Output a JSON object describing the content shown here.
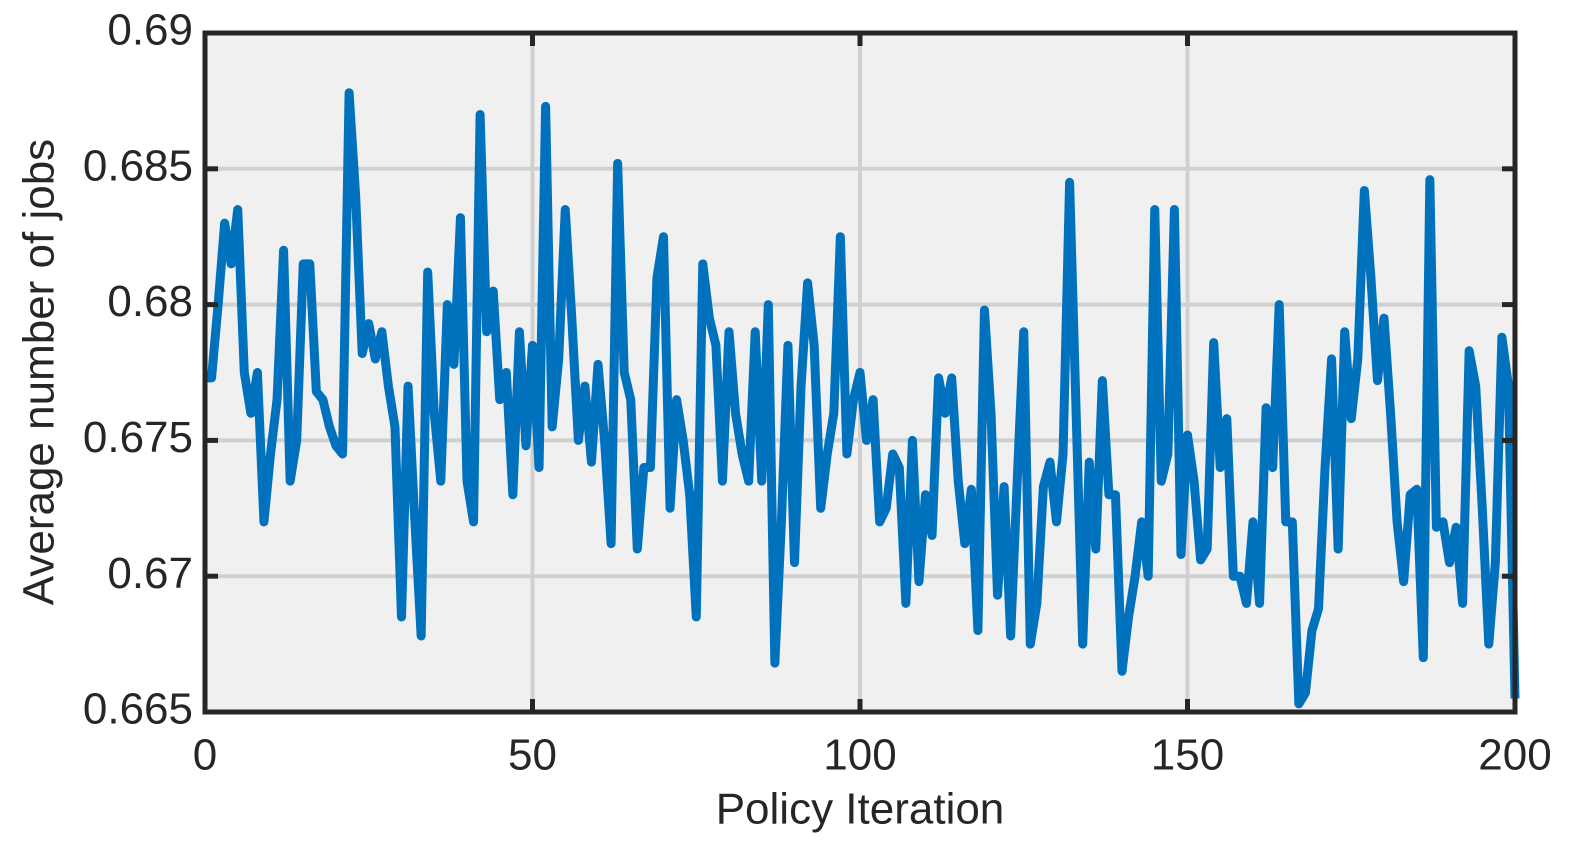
{
  "chart_data": {
    "type": "line",
    "xlabel": "Policy Iteration",
    "ylabel": "Average number of jobs",
    "x": [
      0,
      1,
      2,
      3,
      4,
      5,
      6,
      7,
      8,
      9,
      10,
      11,
      12,
      13,
      14,
      15,
      16,
      17,
      18,
      19,
      20,
      21,
      22,
      23,
      24,
      25,
      26,
      27,
      28,
      29,
      30,
      31,
      32,
      33,
      34,
      35,
      36,
      37,
      38,
      39,
      40,
      41,
      42,
      43,
      44,
      45,
      46,
      47,
      48,
      49,
      50,
      51,
      52,
      53,
      54,
      55,
      56,
      57,
      58,
      59,
      60,
      61,
      62,
      63,
      64,
      65,
      66,
      67,
      68,
      69,
      70,
      71,
      72,
      73,
      74,
      75,
      76,
      77,
      78,
      79,
      80,
      81,
      82,
      83,
      84,
      85,
      86,
      87,
      88,
      89,
      90,
      91,
      92,
      93,
      94,
      95,
      96,
      97,
      98,
      99,
      100,
      101,
      102,
      103,
      104,
      105,
      106,
      107,
      108,
      109,
      110,
      111,
      112,
      113,
      114,
      115,
      116,
      117,
      118,
      119,
      120,
      121,
      122,
      123,
      124,
      125,
      126,
      127,
      128,
      129,
      130,
      131,
      132,
      133,
      134,
      135,
      136,
      137,
      138,
      139,
      140,
      141,
      142,
      143,
      144,
      145,
      146,
      147,
      148,
      149,
      150,
      151,
      152,
      153,
      154,
      155,
      156,
      157,
      158,
      159,
      160,
      161,
      162,
      163,
      164,
      165,
      166,
      167,
      168,
      169,
      170,
      171,
      172,
      173,
      174,
      175,
      176,
      177,
      178,
      179,
      180,
      181,
      182,
      183,
      184,
      185,
      186,
      187,
      188,
      189,
      190,
      191,
      192,
      193,
      194,
      195,
      196,
      197,
      198,
      199,
      200
    ],
    "series": [
      {
        "color": "#0072bd",
        "values": [
          0.6773,
          0.6773,
          0.68,
          0.683,
          0.6815,
          0.6835,
          0.6775,
          0.676,
          0.6775,
          0.672,
          0.6745,
          0.6765,
          0.682,
          0.6735,
          0.675,
          0.6815,
          0.6815,
          0.6768,
          0.6765,
          0.6755,
          0.6748,
          0.6745,
          0.6878,
          0.684,
          0.6782,
          0.6793,
          0.678,
          0.679,
          0.677,
          0.6755,
          0.6685,
          0.677,
          0.6722,
          0.6678,
          0.6812,
          0.676,
          0.6735,
          0.68,
          0.6778,
          0.6832,
          0.6735,
          0.672,
          0.687,
          0.679,
          0.6805,
          0.6765,
          0.6775,
          0.673,
          0.679,
          0.6748,
          0.6785,
          0.674,
          0.6873,
          0.6755,
          0.678,
          0.6835,
          0.6795,
          0.675,
          0.677,
          0.6742,
          0.6778,
          0.675,
          0.6712,
          0.6852,
          0.6775,
          0.6765,
          0.671,
          0.674,
          0.674,
          0.681,
          0.6825,
          0.6725,
          0.6765,
          0.675,
          0.673,
          0.6685,
          0.6815,
          0.6795,
          0.6785,
          0.6735,
          0.679,
          0.676,
          0.6745,
          0.6735,
          0.679,
          0.6735,
          0.68,
          0.6668,
          0.672,
          0.6785,
          0.6705,
          0.677,
          0.6808,
          0.6785,
          0.6725,
          0.6745,
          0.676,
          0.6825,
          0.6745,
          0.6765,
          0.6775,
          0.675,
          0.6765,
          0.672,
          0.6725,
          0.6745,
          0.674,
          0.669,
          0.675,
          0.6698,
          0.673,
          0.6715,
          0.6773,
          0.676,
          0.6773,
          0.6735,
          0.6712,
          0.6732,
          0.668,
          0.6798,
          0.676,
          0.6693,
          0.6733,
          0.6678,
          0.6735,
          0.679,
          0.6675,
          0.669,
          0.6733,
          0.6742,
          0.672,
          0.6745,
          0.6845,
          0.676,
          0.6675,
          0.6742,
          0.671,
          0.6772,
          0.673,
          0.673,
          0.6665,
          0.6685,
          0.67,
          0.672,
          0.67,
          0.6835,
          0.6735,
          0.6745,
          0.6835,
          0.6708,
          0.6752,
          0.6735,
          0.6706,
          0.671,
          0.6786,
          0.674,
          0.6758,
          0.67,
          0.67,
          0.669,
          0.672,
          0.669,
          0.6762,
          0.674,
          0.68,
          0.672,
          0.672,
          0.6653,
          0.6657,
          0.668,
          0.6688,
          0.674,
          0.678,
          0.671,
          0.679,
          0.6758,
          0.678,
          0.6842,
          0.681,
          0.6772,
          0.6795,
          0.676,
          0.672,
          0.6698,
          0.673,
          0.6732,
          0.667,
          0.6846,
          0.6718,
          0.672,
          0.6705,
          0.6718,
          0.669,
          0.6783,
          0.677,
          0.6725,
          0.6675,
          0.6705,
          0.6788,
          0.677,
          0.6655
        ]
      }
    ],
    "xlim": [
      0,
      200
    ],
    "xticks": [
      0,
      50,
      100,
      150,
      200
    ],
    "ylim": [
      0.665,
      0.69
    ],
    "yticks": [
      0.665,
      0.67,
      0.675,
      0.68,
      0.685,
      0.69
    ],
    "grid": true
  }
}
